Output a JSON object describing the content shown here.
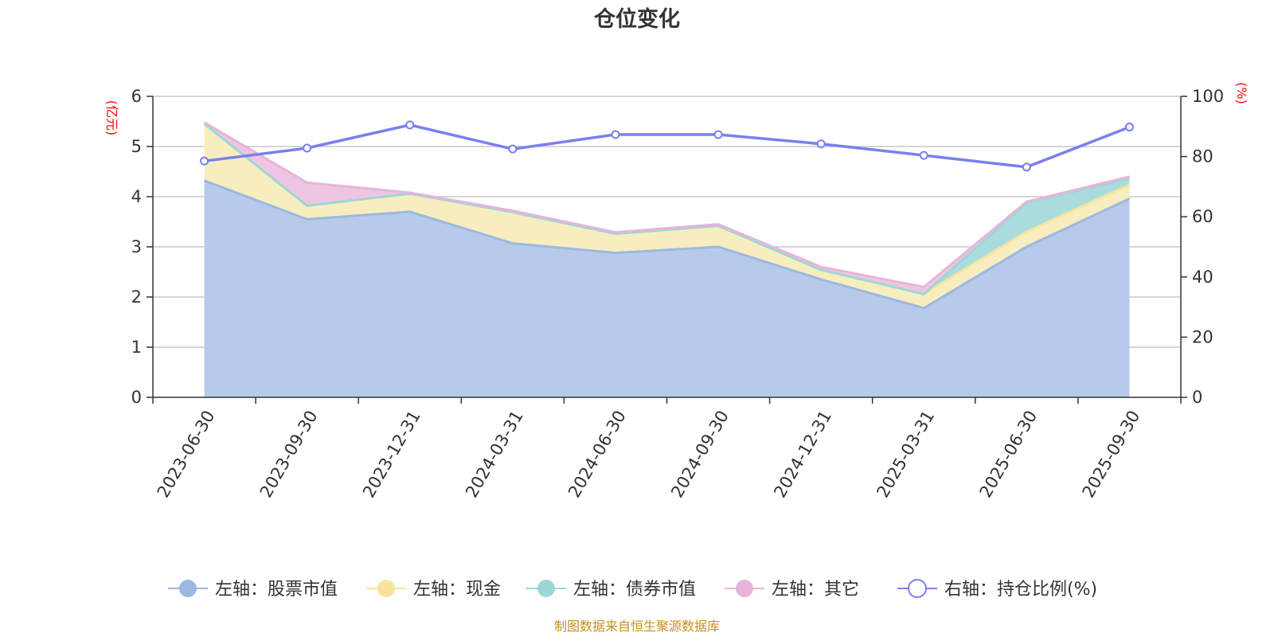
{
  "chart_data": {
    "type": "area",
    "title": "仓位变化",
    "left_axis_label": "(亿元)",
    "right_axis_label": "(%)",
    "categories": [
      "2023-06-30",
      "2023-09-30",
      "2023-12-31",
      "2024-03-31",
      "2024-06-30",
      "2024-09-30",
      "2024-12-31",
      "2025-03-31",
      "2025-06-30",
      "2025-09-30"
    ],
    "ylim_left": [
      0,
      6
    ],
    "yticks_left": [
      0,
      1,
      2,
      3,
      4,
      5,
      6
    ],
    "ylim_right": [
      0,
      100
    ],
    "yticks_right": [
      0,
      20,
      40,
      60,
      80,
      100
    ],
    "stacked_series": [
      {
        "name": "左轴：股票市值",
        "axis": "left",
        "color": "#9db8e1",
        "fill": "#b7cae9",
        "values": [
          4.32,
          3.55,
          3.7,
          3.07,
          2.88,
          3.0,
          2.35,
          1.78,
          3.0,
          3.96
        ]
      },
      {
        "name": "左轴：现金",
        "axis": "left",
        "color": "#f7e49a",
        "fill": "#f8edbf",
        "values": [
          1.13,
          0.27,
          0.36,
          0.62,
          0.38,
          0.42,
          0.19,
          0.28,
          0.3,
          0.28
        ]
      },
      {
        "name": "左轴：债券市值",
        "axis": "left",
        "color": "#9ed6d8",
        "fill": "#a9dcdd",
        "values": [
          0,
          0,
          0,
          0,
          0,
          0,
          0,
          0,
          0.58,
          0.12
        ]
      },
      {
        "name": "左轴：其它",
        "axis": "left",
        "color": "#e8b4d9",
        "fill": "#efc6e2",
        "values": [
          0.03,
          0.46,
          0.02,
          0.03,
          0.03,
          0.03,
          0.06,
          0.14,
          0.02,
          0.04
        ]
      }
    ],
    "line_series": {
      "name": "右轴：持仓比例(%)",
      "axis": "right",
      "color": "#7b7ff0",
      "values": [
        78.5,
        82.8,
        90.5,
        82.5,
        87.3,
        87.3,
        84.2,
        80.4,
        76.5,
        89.8
      ]
    },
    "legend_position": "bottom"
  },
  "source": "制图数据来自恒生聚源数据库"
}
